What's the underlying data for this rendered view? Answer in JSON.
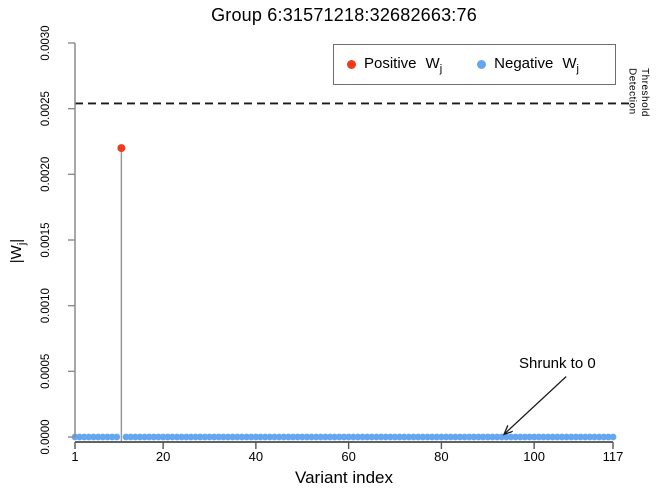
{
  "chart_data": {
    "type": "scatter",
    "title": "Group 6:31571218:32682663:76",
    "xlabel": "Variant index",
    "ylabel": "|W_j|",
    "xlim": [
      1,
      117
    ],
    "ylim": [
      0,
      0.003
    ],
    "x_ticks": [
      1,
      20,
      40,
      60,
      80,
      100,
      117
    ],
    "y_tick_values": [
      0,
      0.0005,
      0.001,
      0.0015,
      0.002,
      0.0025,
      0.003
    ],
    "y_tick_labels": [
      "0.0000",
      "0.0005",
      "0.0010",
      "0.0015",
      "0.0020",
      "0.0025",
      "0.0030"
    ],
    "grid": false,
    "legend_position": "top-right",
    "series": [
      {
        "name": "Positive W_j",
        "type": "stem",
        "color": "#f2391c",
        "stem_color": "#999999",
        "points": [
          {
            "x": 11,
            "y": 0.0022
          }
        ]
      },
      {
        "name": "Negative W_j",
        "type": "points",
        "color": "#64a6f0",
        "x_from": 1,
        "x_to": 117,
        "exclude_x": [
          11
        ],
        "y": 0
      }
    ],
    "threshold": {
      "y": 0.00254,
      "label": "Detection Threshold",
      "line_style": "dashed",
      "color": "#1a1a1a"
    },
    "annotation": {
      "text": "Shrunk to 0",
      "text_x": 105,
      "text_y": 0.00056,
      "arrow_from_x": 106.9,
      "arrow_from_y": 0.00046,
      "arrow_to_x": 93.5,
      "arrow_to_y": 2e-05
    }
  },
  "labels": {
    "ylabel_prefix": "|W",
    "ylabel_sub": "j",
    "ylabel_suffix": "|",
    "threshold_line1": "Detection",
    "threshold_line2": "Threshold"
  },
  "legend": {
    "items": [
      {
        "prefix": "Positive",
        "symbol": "W",
        "sub": "j",
        "color": "#f2391c"
      },
      {
        "prefix": "Negative",
        "symbol": "W",
        "sub": "j",
        "color": "#64a6f0"
      }
    ]
  }
}
